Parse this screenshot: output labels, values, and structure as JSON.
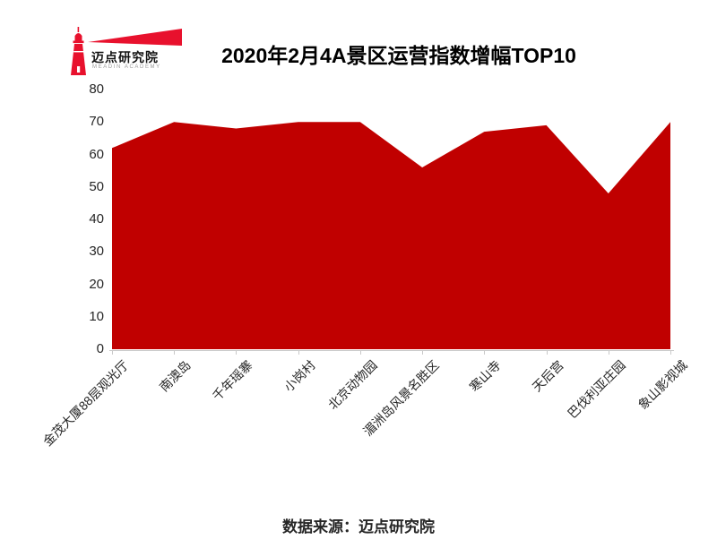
{
  "brand": {
    "name_cn": "迈点研究院",
    "name_en": "MEADIN ACADEMY"
  },
  "title": "2020年2月4A景区运营指数增幅TOP10",
  "source_note": "数据来源：迈点研究院",
  "colors": {
    "series_fill": "#c00000",
    "logo_red": "#e8112d",
    "axis_line": "#c9c9c9",
    "label_text": "#262626"
  },
  "chart_data": {
    "type": "area",
    "title": "2020年2月4A景区运营指数增幅TOP10",
    "categories": [
      "金茂大厦88层观光厅",
      "南澳岛",
      "千年瑶寨",
      "小岗村",
      "北京动物园",
      "湄洲岛风景名胜区",
      "寒山寺",
      "天后宫",
      "巴伐利亚庄园",
      "象山影视城"
    ],
    "values": [
      62,
      70,
      68,
      70,
      70,
      56,
      67,
      69,
      48,
      70
    ],
    "ylim": [
      0,
      80
    ],
    "ytick_interval": 10,
    "xlabel": "",
    "ylabel": "",
    "grid": false,
    "legend": false,
    "x_label_rotation_deg": 45,
    "fill_color": "#c00000"
  }
}
